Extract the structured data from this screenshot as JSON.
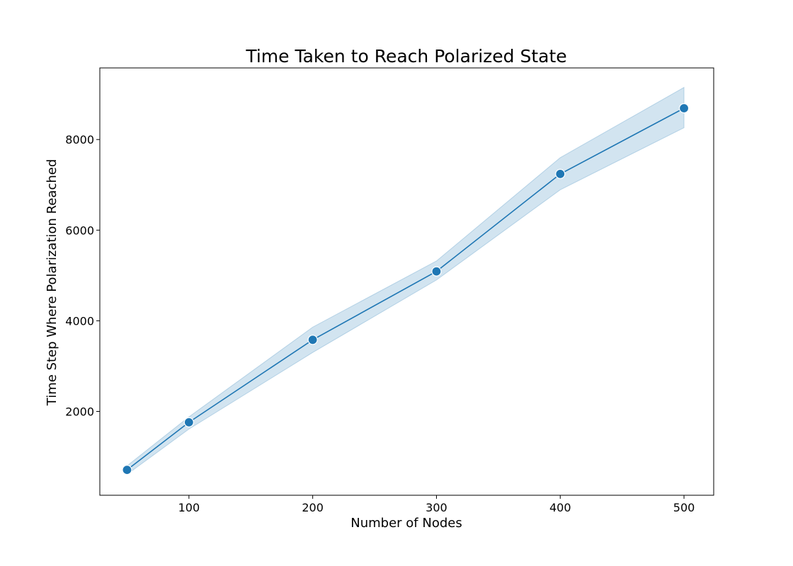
{
  "chart_data": {
    "type": "line",
    "title": "Time Taken to Reach Polarized State",
    "xlabel": "Number of Nodes",
    "ylabel": "Time Step Where Polarization Reached",
    "xlim": [
      28,
      524
    ],
    "ylim": [
      150,
      9580
    ],
    "xticks": [
      100,
      200,
      300,
      400,
      500
    ],
    "yticks": [
      2000,
      4000,
      6000,
      8000
    ],
    "grid": false,
    "color": "#1f77b4",
    "band_color": "#1f77b4",
    "series": [
      {
        "x": [
          50,
          100,
          200,
          300,
          400,
          500
        ],
        "y": [
          710,
          1760,
          3580,
          5090,
          7240,
          8690
        ],
        "ci_lower": [
          610,
          1610,
          3300,
          4900,
          6890,
          8260
        ],
        "ci_upper": [
          800,
          1880,
          3860,
          5320,
          7600,
          9150
        ]
      }
    ]
  }
}
